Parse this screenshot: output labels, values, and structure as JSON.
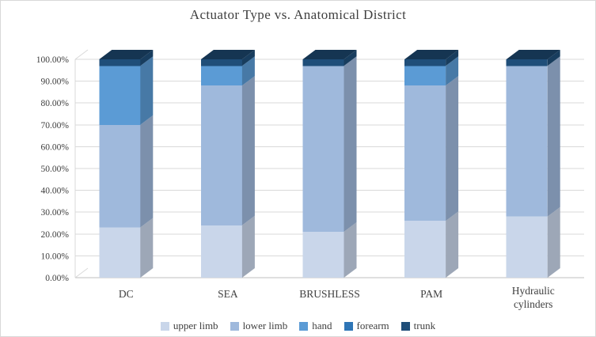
{
  "title": "Actuator Type vs. Anatomical District",
  "chart_data": {
    "type": "bar",
    "variant": "3d-stacked-100pct-column",
    "title": "Actuator Type vs. Anatomical District",
    "categories": [
      "DC",
      "SEA",
      "BRUSHLESS",
      "PAM",
      "Hydraulic cylinders"
    ],
    "series": [
      {
        "name": "upper limb",
        "color": "#c9d6ea",
        "values": [
          23,
          24,
          21,
          26,
          28
        ]
      },
      {
        "name": "lower limb",
        "color": "#9fb9dc",
        "values": [
          47,
          64,
          76,
          62,
          69
        ]
      },
      {
        "name": "hand",
        "color": "#5b9bd5",
        "values": [
          27,
          9,
          0,
          9,
          0
        ]
      },
      {
        "name": "forearm",
        "color": "#2e75b6",
        "values": [
          0,
          0,
          0,
          0,
          0
        ]
      },
      {
        "name": "trunk",
        "color": "#1f4e79",
        "values": [
          3,
          3,
          3,
          3,
          3
        ]
      }
    ],
    "xlabel": "",
    "ylabel": "",
    "ylim": [
      0,
      100
    ],
    "ytick_step": 10,
    "ytick_format": "0.00%",
    "ytick_labels": [
      "0.00%",
      "10.00%",
      "20.00%",
      "30.00%",
      "40.00%",
      "50.00%",
      "60.00%",
      "70.00%",
      "80.00%",
      "90.00%",
      "100.00%"
    ],
    "grid": true,
    "legend_position": "bottom",
    "colors": {
      "gridline": "#d9d9d9",
      "axis_line": "#bfbfbf",
      "text": "#404040"
    }
  }
}
